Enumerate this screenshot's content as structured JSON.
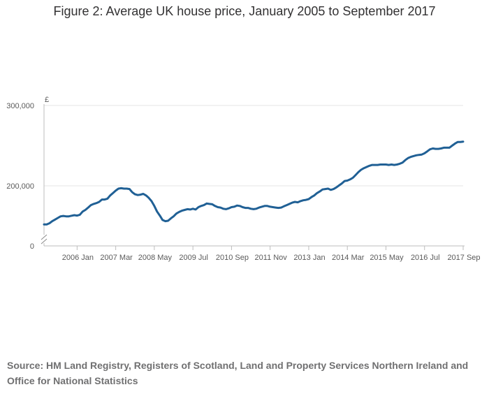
{
  "title": "Figure 2: Average UK house price, January 2005 to September 2017",
  "source": "Source: HM Land Registry, Registers of Scotland, Land and Property Services Northern Ireland and Office for National Statistics",
  "chart_data": {
    "type": "line",
    "title": "Figure 2: Average UK house price, January 2005 to September 2017",
    "ylabel": "£",
    "xlabel": "",
    "ylim": [
      0,
      300000
    ],
    "axis_break": true,
    "yticks": [
      {
        "value": 0,
        "label": "0"
      },
      {
        "value": 200000,
        "label": "200,000"
      },
      {
        "value": 300000,
        "label": "300,000"
      }
    ],
    "xticks": [
      {
        "t": 12,
        "label": "2006 Jan"
      },
      {
        "t": 26,
        "label": "2007 Mar"
      },
      {
        "t": 40,
        "label": "2008 May"
      },
      {
        "t": 54,
        "label": "2009 Jul"
      },
      {
        "t": 68,
        "label": "2010 Sep"
      },
      {
        "t": 82,
        "label": "2011 Nov"
      },
      {
        "t": 96,
        "label": "2013 Jan"
      },
      {
        "t": 110,
        "label": "2014 Mar"
      },
      {
        "t": 124,
        "label": "2015 May"
      },
      {
        "t": 138,
        "label": "2016 Jul"
      },
      {
        "t": 152,
        "label": "2017 Sep"
      }
    ],
    "grid": true,
    "line_color": "#206095",
    "series": [
      {
        "name": "Average UK house price",
        "points": [
          [
            0,
            152000
          ],
          [
            1,
            152000
          ],
          [
            2,
            153500
          ],
          [
            3,
            156000
          ],
          [
            4,
            158000
          ],
          [
            5,
            160000
          ],
          [
            6,
            162000
          ],
          [
            7,
            162500
          ],
          [
            8,
            162000
          ],
          [
            9,
            162000
          ],
          [
            10,
            162800
          ],
          [
            11,
            163500
          ],
          [
            12,
            163000
          ],
          [
            13,
            164000
          ],
          [
            14,
            168000
          ],
          [
            15,
            170000
          ],
          [
            16,
            173000
          ],
          [
            17,
            176000
          ],
          [
            18,
            177500
          ],
          [
            19,
            178500
          ],
          [
            20,
            180000
          ],
          [
            21,
            183000
          ],
          [
            22,
            183000
          ],
          [
            23,
            184000
          ],
          [
            24,
            188000
          ],
          [
            25,
            191000
          ],
          [
            26,
            194000
          ],
          [
            27,
            196500
          ],
          [
            28,
            197000
          ],
          [
            29,
            196500
          ],
          [
            30,
            196500
          ],
          [
            31,
            196000
          ],
          [
            32,
            192000
          ],
          [
            33,
            189500
          ],
          [
            34,
            188500
          ],
          [
            35,
            189000
          ],
          [
            36,
            190000
          ],
          [
            37,
            188000
          ],
          [
            38,
            185000
          ],
          [
            39,
            181000
          ],
          [
            40,
            175000
          ],
          [
            41,
            168000
          ],
          [
            42,
            163000
          ],
          [
            43,
            157500
          ],
          [
            44,
            156000
          ],
          [
            45,
            156500
          ],
          [
            46,
            159500
          ],
          [
            47,
            162000
          ],
          [
            48,
            165500
          ],
          [
            49,
            167500
          ],
          [
            50,
            169000
          ],
          [
            51,
            170000
          ],
          [
            52,
            171000
          ],
          [
            53,
            170500
          ],
          [
            54,
            171500
          ],
          [
            55,
            170500
          ],
          [
            56,
            173500
          ],
          [
            57,
            175000
          ],
          [
            58,
            176000
          ],
          [
            59,
            178000
          ],
          [
            60,
            177500
          ],
          [
            61,
            177000
          ],
          [
            62,
            175000
          ],
          [
            63,
            173500
          ],
          [
            64,
            173000
          ],
          [
            65,
            171500
          ],
          [
            66,
            171000
          ],
          [
            67,
            172000
          ],
          [
            68,
            173500
          ],
          [
            69,
            174000
          ],
          [
            70,
            175500
          ],
          [
            71,
            175000
          ],
          [
            72,
            173500
          ],
          [
            73,
            172500
          ],
          [
            74,
            172500
          ],
          [
            75,
            171500
          ],
          [
            76,
            171000
          ],
          [
            77,
            171500
          ],
          [
            78,
            173000
          ],
          [
            79,
            174000
          ],
          [
            80,
            175000
          ],
          [
            81,
            175000
          ],
          [
            82,
            174000
          ],
          [
            83,
            173500
          ],
          [
            84,
            173000
          ],
          [
            85,
            172500
          ],
          [
            86,
            173000
          ],
          [
            87,
            174500
          ],
          [
            88,
            176000
          ],
          [
            89,
            177500
          ],
          [
            90,
            179000
          ],
          [
            91,
            180000
          ],
          [
            92,
            179500
          ],
          [
            93,
            181000
          ],
          [
            94,
            182000
          ],
          [
            95,
            182500
          ],
          [
            96,
            183500
          ],
          [
            97,
            186000
          ],
          [
            98,
            188000
          ],
          [
            99,
            191000
          ],
          [
            100,
            193000
          ],
          [
            101,
            195500
          ],
          [
            102,
            196000
          ],
          [
            103,
            196500
          ],
          [
            104,
            195000
          ],
          [
            105,
            196000
          ],
          [
            106,
            198000
          ],
          [
            107,
            200500
          ],
          [
            108,
            203000
          ],
          [
            109,
            206000
          ],
          [
            110,
            206500
          ],
          [
            111,
            208000
          ],
          [
            112,
            210000
          ],
          [
            113,
            213500
          ],
          [
            114,
            217000
          ],
          [
            115,
            220000
          ],
          [
            116,
            222000
          ],
          [
            117,
            223500
          ],
          [
            118,
            225000
          ],
          [
            119,
            226000
          ],
          [
            120,
            226000
          ],
          [
            121,
            226000
          ],
          [
            122,
            226500
          ],
          [
            123,
            226500
          ],
          [
            124,
            226500
          ],
          [
            125,
            226000
          ],
          [
            126,
            226500
          ],
          [
            127,
            226000
          ],
          [
            128,
            226500
          ],
          [
            129,
            227500
          ],
          [
            130,
            229000
          ],
          [
            131,
            232000
          ],
          [
            132,
            234500
          ],
          [
            133,
            236000
          ],
          [
            134,
            237000
          ],
          [
            135,
            238000
          ],
          [
            136,
            238500
          ],
          [
            137,
            239000
          ],
          [
            138,
            240500
          ],
          [
            139,
            243000
          ],
          [
            140,
            245500
          ],
          [
            141,
            246500
          ],
          [
            142,
            246000
          ],
          [
            143,
            246000
          ],
          [
            144,
            246500
          ],
          [
            145,
            247500
          ],
          [
            146,
            247500
          ],
          [
            147,
            247500
          ],
          [
            148,
            250000
          ],
          [
            149,
            252500
          ],
          [
            150,
            254500
          ],
          [
            151,
            254500
          ],
          [
            152,
            255000
          ]
        ]
      }
    ]
  }
}
